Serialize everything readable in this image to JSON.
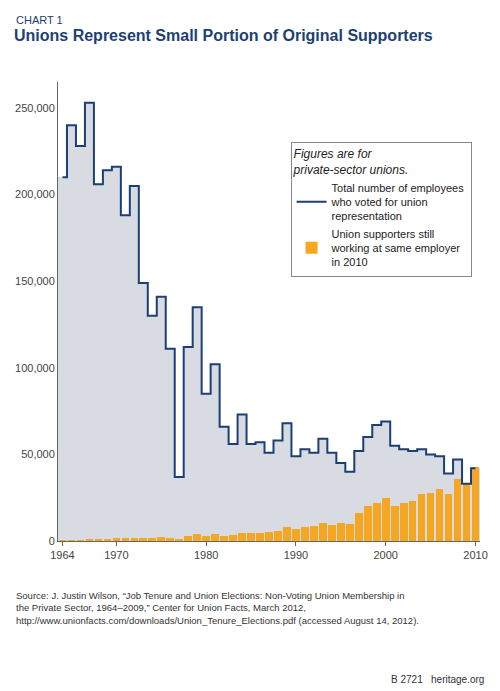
{
  "chart_data": {
    "type": "bar",
    "label": "CHART 1",
    "title": "Unions Represent Small Portion of Original Supporters",
    "note": "Figures are for private-sector unions.",
    "source": "Source: J. Justin Wilson, “Job Tenure and Union Elections: Non-Voting Union Membership in the Private Sector, 1964–2009,” Center for Union Facts, March 2012, http://www.unionfacts.com/downloads/Union_Tenure_Elections.pdf (accessed August 14, 2012).",
    "footer_code": "B 2721",
    "footer_site": "heritage.org",
    "x": [
      1964,
      1965,
      1966,
      1967,
      1968,
      1969,
      1970,
      1971,
      1972,
      1973,
      1974,
      1975,
      1976,
      1977,
      1978,
      1979,
      1980,
      1981,
      1982,
      1983,
      1984,
      1985,
      1986,
      1987,
      1988,
      1989,
      1990,
      1991,
      1992,
      1993,
      1994,
      1995,
      1996,
      1997,
      1998,
      1999,
      2000,
      2001,
      2002,
      2003,
      2004,
      2005,
      2006,
      2007,
      2008,
      2009,
      2010
    ],
    "series": [
      {
        "name": "Total number of employees who voted for union representation",
        "type": "line",
        "line_style": "step",
        "color": "#1c3f75",
        "values": [
          210000,
          240000,
          228000,
          253000,
          206000,
          214000,
          216000,
          188000,
          205000,
          149000,
          130000,
          141000,
          111000,
          37000,
          112000,
          135000,
          85000,
          102000,
          66000,
          56000,
          73000,
          56000,
          57000,
          51000,
          58000,
          68000,
          49000,
          53000,
          51000,
          59000,
          51000,
          45000,
          40000,
          52000,
          60000,
          67000,
          69000,
          55000,
          53000,
          52000,
          53000,
          50000,
          49000,
          39000,
          47000,
          33000,
          42000
        ]
      },
      {
        "name": "Union supporters still working at same employer in 2010",
        "type": "bar",
        "color": "#f5a623",
        "values": [
          300,
          500,
          700,
          900,
          1000,
          1200,
          1500,
          1500,
          1800,
          2000,
          2000,
          2200,
          2000,
          1000,
          3000,
          4000,
          3000,
          4000,
          3000,
          3500,
          4500,
          4500,
          4500,
          5000,
          6000,
          8000,
          7000,
          8000,
          8500,
          10500,
          9500,
          10500,
          10000,
          16000,
          20000,
          22000,
          25000,
          20000,
          22000,
          23000,
          27000,
          28000,
          30000,
          27000,
          36000,
          33000,
          43000
        ]
      }
    ],
    "xlim": [
      1963.5,
      2010.5
    ],
    "xticks": [
      1964,
      1970,
      1980,
      1990,
      2000,
      2010
    ],
    "ylim": [
      0,
      265000
    ],
    "yticks": [
      0,
      {
        "value": 50000,
        "label": "50,000"
      },
      {
        "value": 100000,
        "label": "100,000"
      },
      {
        "value": 150000,
        "label": "150,000"
      },
      {
        "value": 200000,
        "label": "200,000"
      },
      {
        "value": 250000,
        "label": "250,000"
      }
    ],
    "grid": false,
    "legend": "upper right"
  }
}
